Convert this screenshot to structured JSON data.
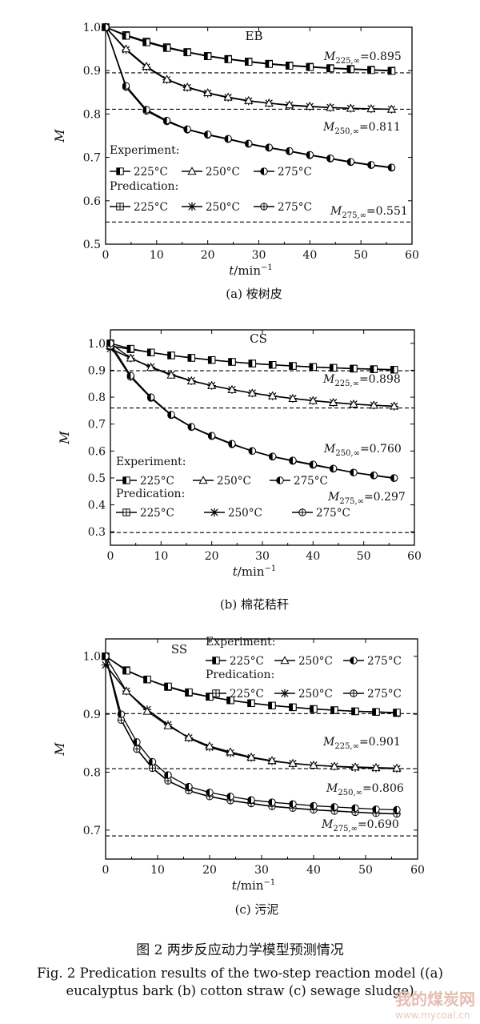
{
  "figure": {
    "title_zh": "图 2  两步反应动力学模型预测情况",
    "caption_en": "Fig. 2  Predication results of the two-step reaction model ((a) eucalyptus bark (b) cotton straw (c) sewage sludge)",
    "watermark_text": "我的煤炭网",
    "watermark_url": "www.mycoal.cn"
  },
  "chart_data": [
    {
      "type": "line",
      "panel_label": "(a) 桉树皮",
      "title": "EB",
      "xlabel": "t/min",
      "xlabel_sup": "−1",
      "ylabel": "M",
      "xlim": [
        0,
        60
      ],
      "ylim": [
        0.5,
        1.0
      ],
      "xticks": [
        0,
        10,
        20,
        30,
        40,
        50,
        60
      ],
      "yticks": [
        0.5,
        0.6,
        0.7,
        0.8,
        0.9,
        1.0
      ],
      "legend": {
        "experiment_label": "Experiment:",
        "prediction_label": "Predication:",
        "experiment_items": [
          "225°C",
          "250°C",
          "275°C"
        ],
        "prediction_items": [
          "225°C",
          "250°C",
          "275°C"
        ]
      },
      "asymptotes": [
        {
          "value": 0.895,
          "label_main": "M",
          "label_sub": "225,∞",
          "label_val": "=0.895"
        },
        {
          "value": 0.811,
          "label_main": "M",
          "label_sub": "250,∞",
          "label_val": "=0.811"
        },
        {
          "value": 0.551,
          "label_main": "M",
          "label_sub": "275,∞",
          "label_val": "=0.551"
        }
      ],
      "series": [
        {
          "temp": 225,
          "x": [
            0,
            4,
            8,
            12,
            16,
            20,
            24,
            28,
            32,
            36,
            40,
            44,
            48,
            52,
            56
          ],
          "experiment": [
            1.0,
            0.98,
            0.965,
            0.952,
            0.942,
            0.933,
            0.926,
            0.92,
            0.915,
            0.911,
            0.908,
            0.905,
            0.903,
            0.901,
            0.899
          ],
          "prediction": [
            1.0,
            0.982,
            0.967,
            0.954,
            0.943,
            0.934,
            0.927,
            0.921,
            0.916,
            0.912,
            0.909,
            0.906,
            0.904,
            0.902,
            0.9
          ]
        },
        {
          "temp": 250,
          "x": [
            0,
            4,
            8,
            12,
            16,
            20,
            24,
            28,
            32,
            36,
            40,
            44,
            48,
            52,
            56
          ],
          "experiment": [
            1.0,
            0.95,
            0.91,
            0.88,
            0.862,
            0.849,
            0.839,
            0.831,
            0.825,
            0.821,
            0.818,
            0.815,
            0.813,
            0.812,
            0.811
          ],
          "prediction": [
            1.0,
            0.948,
            0.908,
            0.879,
            0.861,
            0.848,
            0.838,
            0.83,
            0.825,
            0.82,
            0.817,
            0.815,
            0.813,
            0.812,
            0.811
          ]
        },
        {
          "temp": 275,
          "x": [
            0,
            4,
            8,
            12,
            16,
            20,
            24,
            28,
            32,
            36,
            40,
            44,
            48,
            52,
            56
          ],
          "experiment": [
            1.0,
            0.865,
            0.81,
            0.785,
            0.765,
            0.753,
            0.743,
            0.732,
            0.723,
            0.715,
            0.706,
            0.698,
            0.69,
            0.683,
            0.677
          ],
          "prediction": [
            1.0,
            0.862,
            0.807,
            0.783,
            0.764,
            0.752,
            0.742,
            0.731,
            0.722,
            0.714,
            0.705,
            0.697,
            0.689,
            0.682,
            0.676
          ]
        }
      ]
    },
    {
      "type": "line",
      "panel_label": "(b) 棉花秸秆",
      "title": "CS",
      "xlabel": "t/min",
      "xlabel_sup": "−1",
      "ylabel": "M",
      "xlim": [
        0,
        60
      ],
      "ylim": [
        0.25,
        1.05
      ],
      "xticks": [
        0,
        10,
        20,
        30,
        40,
        50,
        60
      ],
      "yticks": [
        0.3,
        0.4,
        0.5,
        0.6,
        0.7,
        0.8,
        0.9,
        1.0
      ],
      "legend": {
        "experiment_label": "Experiment:",
        "prediction_label": "Predication:",
        "experiment_items": [
          "225°C",
          "250°C",
          "275°C"
        ],
        "prediction_items": [
          "225°C",
          "250°C",
          "275°C"
        ]
      },
      "asymptotes": [
        {
          "value": 0.898,
          "label_main": "M",
          "label_sub": "225,∞",
          "label_val": "=0.898"
        },
        {
          "value": 0.76,
          "label_main": "M",
          "label_sub": "250,∞",
          "label_val": "=0.760"
        },
        {
          "value": 0.297,
          "label_main": "M",
          "label_sub": "275,∞",
          "label_val": "=0.297"
        }
      ],
      "series": [
        {
          "temp": 225,
          "x": [
            0,
            4,
            8,
            12,
            16,
            20,
            24,
            28,
            32,
            36,
            40,
            44,
            48,
            52,
            56
          ],
          "experiment": [
            1.0,
            0.98,
            0.966,
            0.955,
            0.946,
            0.938,
            0.931,
            0.925,
            0.92,
            0.916,
            0.912,
            0.909,
            0.906,
            0.904,
            0.902
          ],
          "prediction": [
            0.99,
            0.978,
            0.966,
            0.955,
            0.946,
            0.938,
            0.931,
            0.925,
            0.92,
            0.916,
            0.912,
            0.909,
            0.906,
            0.904,
            0.902
          ]
        },
        {
          "temp": 250,
          "x": [
            0,
            4,
            8,
            12,
            16,
            20,
            24,
            28,
            32,
            36,
            40,
            44,
            48,
            52,
            56
          ],
          "experiment": [
            1.0,
            0.945,
            0.91,
            0.882,
            0.86,
            0.843,
            0.828,
            0.815,
            0.805,
            0.795,
            0.787,
            0.78,
            0.774,
            0.77,
            0.767
          ],
          "prediction": [
            0.98,
            0.945,
            0.912,
            0.884,
            0.861,
            0.843,
            0.828,
            0.815,
            0.804,
            0.795,
            0.787,
            0.78,
            0.774,
            0.77,
            0.766
          ]
        },
        {
          "temp": 275,
          "x": [
            0,
            4,
            8,
            12,
            16,
            20,
            24,
            28,
            32,
            36,
            40,
            44,
            48,
            52,
            56
          ],
          "experiment": [
            1.0,
            0.88,
            0.8,
            0.735,
            0.69,
            0.657,
            0.627,
            0.6,
            0.58,
            0.565,
            0.55,
            0.535,
            0.52,
            0.51,
            0.5
          ],
          "prediction": [
            0.99,
            0.875,
            0.797,
            0.733,
            0.689,
            0.655,
            0.625,
            0.6,
            0.579,
            0.563,
            0.548,
            0.534,
            0.52,
            0.509,
            0.499
          ]
        }
      ]
    },
    {
      "type": "line",
      "panel_label": "(c) 污泥",
      "title": "SS",
      "xlabel": "t/min",
      "xlabel_sup": "−1",
      "ylabel": "M",
      "xlim": [
        0,
        60
      ],
      "ylim": [
        0.65,
        1.03
      ],
      "xticks": [
        0,
        10,
        20,
        30,
        40,
        50,
        60
      ],
      "yticks": [
        0.7,
        0.8,
        0.9,
        1.0
      ],
      "legend": {
        "experiment_label": "Experiment:",
        "prediction_label": "Predication:",
        "experiment_items": [
          "225°C",
          "250°C",
          "275°C"
        ],
        "prediction_items": [
          "225°C",
          "250°C",
          "275°C"
        ]
      },
      "asymptotes": [
        {
          "value": 0.901,
          "label_main": "M",
          "label_sub": "225,∞",
          "label_val": "=0.901"
        },
        {
          "value": 0.806,
          "label_main": "M",
          "label_sub": "250,∞",
          "label_val": "=0.806"
        },
        {
          "value": 0.69,
          "label_main": "M",
          "label_sub": "275,∞",
          "label_val": "=0.690"
        }
      ],
      "series": [
        {
          "temp": 225,
          "x": [
            0,
            4,
            8,
            12,
            16,
            20,
            24,
            28,
            32,
            36,
            40,
            44,
            48,
            52,
            56
          ],
          "experiment": [
            1.0,
            0.975,
            0.96,
            0.948,
            0.938,
            0.93,
            0.924,
            0.919,
            0.915,
            0.912,
            0.909,
            0.907,
            0.905,
            0.904,
            0.903
          ],
          "prediction": [
            1.0,
            0.976,
            0.96,
            0.947,
            0.937,
            0.93,
            0.924,
            0.919,
            0.915,
            0.912,
            0.909,
            0.907,
            0.905,
            0.904,
            0.902
          ]
        },
        {
          "temp": 250,
          "x": [
            0,
            4,
            8,
            12,
            16,
            20,
            24,
            28,
            32,
            36,
            40,
            44,
            48,
            52,
            56
          ],
          "experiment": [
            1.0,
            0.94,
            0.905,
            0.88,
            0.86,
            0.845,
            0.835,
            0.826,
            0.82,
            0.815,
            0.812,
            0.81,
            0.809,
            0.808,
            0.807
          ],
          "prediction": [
            0.985,
            0.94,
            0.908,
            0.882,
            0.859,
            0.843,
            0.833,
            0.825,
            0.819,
            0.815,
            0.812,
            0.81,
            0.808,
            0.807,
            0.806
          ]
        },
        {
          "temp": 275,
          "x": [
            0,
            3,
            6,
            9,
            12,
            16,
            20,
            24,
            28,
            32,
            36,
            40,
            44,
            48,
            52,
            56
          ],
          "experiment": [
            1.0,
            0.9,
            0.852,
            0.818,
            0.795,
            0.775,
            0.765,
            0.758,
            0.752,
            0.748,
            0.745,
            0.742,
            0.74,
            0.738,
            0.736,
            0.735
          ],
          "prediction": [
            1.0,
            0.89,
            0.84,
            0.807,
            0.785,
            0.768,
            0.758,
            0.751,
            0.746,
            0.741,
            0.738,
            0.735,
            0.733,
            0.731,
            0.729,
            0.728
          ]
        }
      ]
    }
  ]
}
